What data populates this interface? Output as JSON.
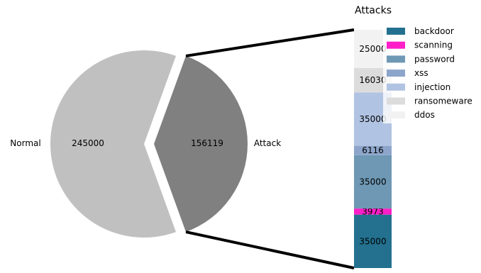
{
  "chart_data": [
    {
      "type": "pie",
      "labels": [
        "Normal",
        "Attack"
      ],
      "values": [
        245000,
        156119
      ],
      "colors": [
        "#c0c0c0",
        "#808080"
      ],
      "exploded": "Attack"
    },
    {
      "type": "bar",
      "stacked": true,
      "title": "Attacks",
      "categories": [
        "backdoor",
        "scanning",
        "password",
        "xss",
        "injection",
        "ransomeware",
        "ddos"
      ],
      "values": [
        35000,
        3973,
        35000,
        6116,
        35000,
        16030,
        25000
      ],
      "colors": [
        "#23718f",
        "#ff1fc8",
        "#6e98b4",
        "#8da5cb",
        "#b1c3e2",
        "#dcdcdc",
        "#f3f2f2"
      ],
      "legend": "top-right"
    }
  ]
}
